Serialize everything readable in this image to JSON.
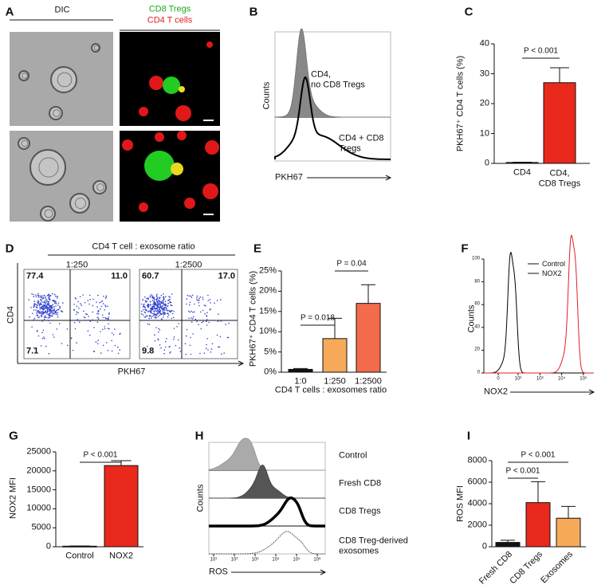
{
  "panels": {
    "A": {
      "label": "A",
      "left_header": "DIC",
      "right_header": [
        "CD8 Tregs",
        "CD4 T cells"
      ]
    },
    "B": {
      "label": "B",
      "ylabel": "Counts",
      "xlabel": "PKH67",
      "legend": [
        "CD4,\nno CD8 Tregs",
        "CD4 + CD8\nTregs"
      ]
    },
    "D": {
      "label": "D",
      "title": "CD4 T cell : exosome ratio",
      "ylabel": "CD4",
      "xlabel": "PKH67",
      "plots": [
        {
          "ratio": "1:250",
          "quadrants": [
            "77.4",
            "11.0",
            "7.1"
          ]
        },
        {
          "ratio": "1:2500",
          "quadrants": [
            "60.7",
            "17.0",
            "9.8"
          ]
        }
      ]
    },
    "F": {
      "label": "F",
      "ylabel": "Counts",
      "xlabel": "NOX2",
      "legend": [
        {
          "name": "Control",
          "color": "#000000"
        },
        {
          "name": "NOX2",
          "color": "#e02020"
        }
      ],
      "ylim": [
        0,
        100
      ],
      "yticks": [
        0,
        20,
        40,
        60,
        80,
        100
      ],
      "xticks": [
        {
          "value": 0,
          "label": "0"
        },
        {
          "value": 100,
          "label": "10²"
        },
        {
          "value": 1000,
          "label": "10³"
        },
        {
          "value": 10000,
          "label": "10⁴"
        },
        {
          "value": 100000,
          "label": "10⁵"
        }
      ]
    },
    "H": {
      "label": "H",
      "ylabel": "Counts",
      "xlabel": "ROS",
      "rows": [
        "Control",
        "Fresh CD8",
        "CD8 Tregs",
        "CD8 Treg-derived\nexosomes"
      ],
      "xticks": [
        {
          "value": 10,
          "label": "10¹"
        },
        {
          "value": 100,
          "label": "10²"
        },
        {
          "value": 1000,
          "label": "10³"
        },
        {
          "value": 10000,
          "label": "10⁴"
        },
        {
          "value": 100000,
          "label": "10⁵"
        },
        {
          "value": 1000000,
          "label": "10⁶"
        }
      ]
    }
  },
  "chart_data": [
    {
      "type": "bar",
      "label": "C",
      "ylabel": "PKH67⁺ CD4 T cells (%)",
      "categories": [
        "CD4",
        "CD4,\nCD8 Tregs"
      ],
      "values": [
        0.3,
        27
      ],
      "errors": [
        0.1,
        5
      ],
      "colors": [
        "#111111",
        "#e8291c"
      ],
      "ylim": [
        0,
        40
      ],
      "yticks": [
        0,
        10,
        20,
        30,
        40
      ],
      "annotations": [
        "P < 0.001"
      ]
    },
    {
      "type": "bar",
      "label": "E",
      "ylabel": "PKH67⁺ CD4 T cells (%)",
      "xlabel": "CD4 T cells : exosomes ratio",
      "categories": [
        "1:0",
        "1:250",
        "1:2500"
      ],
      "values": [
        0.7,
        8.3,
        17
      ],
      "errors": [
        0.2,
        5,
        4.6
      ],
      "colors": [
        "#111111",
        "#f7a95a",
        "#f26b4a"
      ],
      "ylim": [
        0,
        25
      ],
      "yticks": [
        {
          "value": 0,
          "label": "0%"
        },
        {
          "value": 5,
          "label": "5%"
        },
        {
          "value": 10,
          "label": "10%"
        },
        {
          "value": 15,
          "label": "15%"
        },
        {
          "value": 20,
          "label": "20%"
        },
        {
          "value": 25,
          "label": "25%"
        }
      ],
      "annotations": [
        "P = 0.018",
        "P = 0.04"
      ]
    },
    {
      "type": "bar",
      "label": "G",
      "ylabel": "NOX2 MFI",
      "categories": [
        "Control",
        "NOX2"
      ],
      "values": [
        150,
        21400
      ],
      "errors": [
        50,
        1300
      ],
      "colors": [
        "#111111",
        "#e8291c"
      ],
      "ylim": [
        0,
        25000
      ],
      "yticks": [
        0,
        5000,
        10000,
        15000,
        20000,
        25000
      ],
      "annotations": [
        "P < 0.001"
      ]
    },
    {
      "type": "bar",
      "label": "I",
      "ylabel": "ROS MFI",
      "categories": [
        "Fresh CD8",
        "CD8 Tregs",
        "Exosomes"
      ],
      "values": [
        400,
        4100,
        2650
      ],
      "errors": [
        200,
        1950,
        1100
      ],
      "colors": [
        "#111111",
        "#e8291c",
        "#f7a95a"
      ],
      "ylim": [
        0,
        8000
      ],
      "yticks": [
        0,
        2000,
        4000,
        6000,
        8000
      ],
      "annotations": [
        "P < 0.001",
        "P < 0.001"
      ]
    }
  ]
}
